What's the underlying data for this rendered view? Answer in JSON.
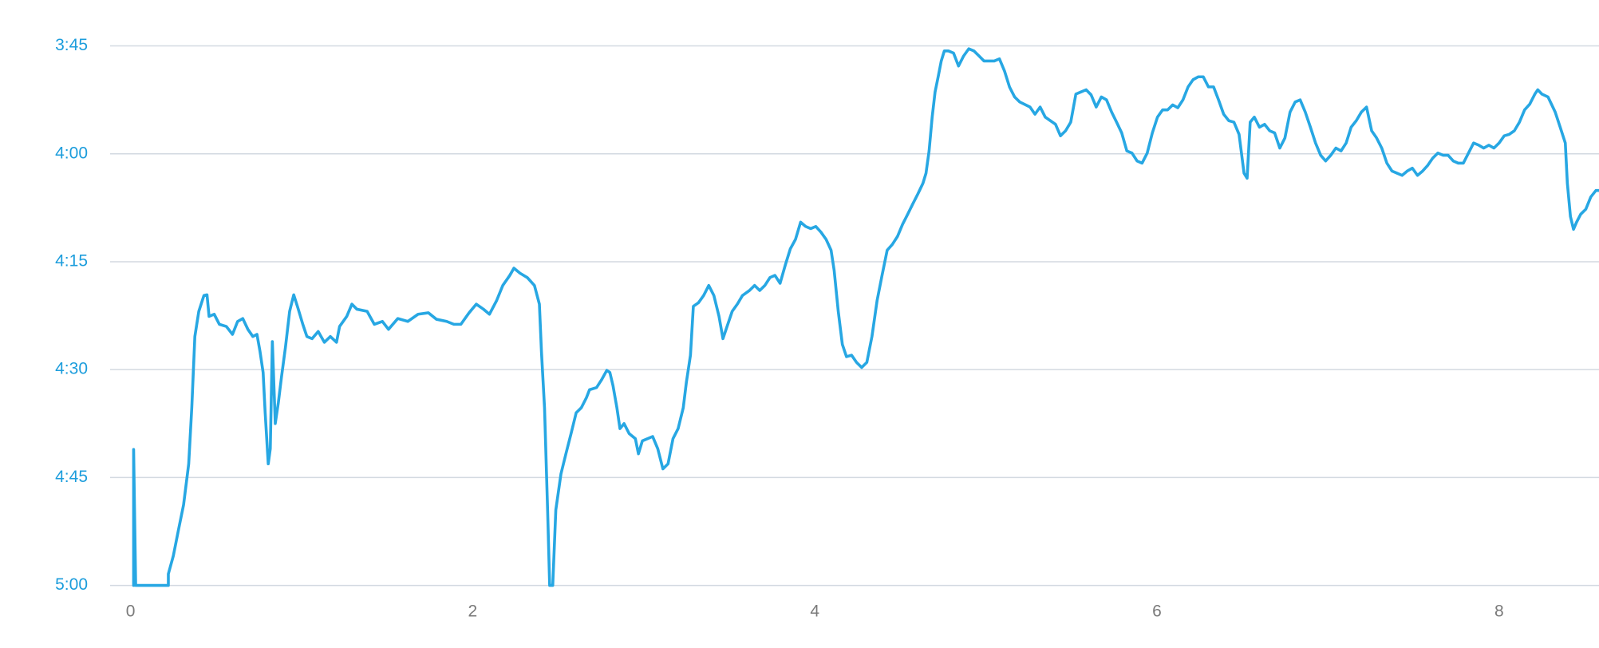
{
  "chart_data": {
    "type": "line",
    "color": "#27a7e3",
    "grid": true,
    "xlim": [
      0,
      8.584
    ],
    "ylim": [
      300,
      225
    ],
    "xticks": [
      0,
      2,
      4,
      6,
      8
    ],
    "yticks": [
      {
        "value": 225,
        "label": "3:45"
      },
      {
        "value": 240,
        "label": "4:00"
      },
      {
        "value": 255,
        "label": "4:15"
      },
      {
        "value": 270,
        "label": "4:30"
      },
      {
        "value": 285,
        "label": "4:45"
      },
      {
        "value": 300,
        "label": "5:00"
      }
    ],
    "x": [
      0.018,
      0.018,
      0.03,
      0.221,
      0.221,
      0.25,
      0.28,
      0.31,
      0.34,
      0.358,
      0.376,
      0.399,
      0.429,
      0.447,
      0.459,
      0.489,
      0.519,
      0.56,
      0.596,
      0.626,
      0.656,
      0.686,
      0.715,
      0.739,
      0.757,
      0.775,
      0.787,
      0.805,
      0.817,
      0.829,
      0.846,
      0.864,
      0.882,
      0.906,
      0.93,
      0.954,
      0.978,
      1.007,
      1.031,
      1.061,
      1.097,
      1.133,
      1.168,
      1.204,
      1.222,
      1.264,
      1.294,
      1.323,
      1.383,
      1.425,
      1.472,
      1.508,
      1.562,
      1.621,
      1.681,
      1.741,
      1.788,
      1.848,
      1.89,
      1.931,
      1.979,
      2.021,
      2.063,
      2.098,
      2.14,
      2.176,
      2.217,
      2.241,
      2.277,
      2.319,
      2.361,
      2.39,
      2.402,
      2.42,
      2.438,
      2.45,
      2.468,
      2.486,
      2.516,
      2.545,
      2.575,
      2.605,
      2.635,
      2.665,
      2.683,
      2.724,
      2.754,
      2.784,
      2.802,
      2.82,
      2.843,
      2.861,
      2.885,
      2.915,
      2.951,
      2.969,
      2.992,
      3.052,
      3.082,
      3.112,
      3.142,
      3.171,
      3.201,
      3.231,
      3.249,
      3.273,
      3.29,
      3.32,
      3.35,
      3.38,
      3.41,
      3.44,
      3.463,
      3.487,
      3.517,
      3.547,
      3.577,
      3.618,
      3.648,
      3.678,
      3.708,
      3.738,
      3.767,
      3.797,
      3.827,
      3.857,
      3.887,
      3.917,
      3.946,
      3.976,
      4.006,
      4.036,
      4.066,
      4.095,
      4.113,
      4.137,
      4.161,
      4.185,
      4.215,
      4.244,
      4.274,
      4.304,
      4.334,
      4.364,
      4.393,
      4.423,
      4.453,
      4.483,
      4.513,
      4.543,
      4.572,
      4.602,
      4.632,
      4.65,
      4.668,
      4.686,
      4.703,
      4.721,
      4.739,
      4.757,
      4.781,
      4.811,
      4.84,
      4.87,
      4.9,
      4.93,
      4.96,
      4.989,
      5.049,
      5.079,
      5.109,
      5.138,
      5.168,
      5.198,
      5.258,
      5.287,
      5.317,
      5.347,
      5.407,
      5.436,
      5.466,
      5.496,
      5.526,
      5.556,
      5.586,
      5.615,
      5.645,
      5.675,
      5.705,
      5.735,
      5.764,
      5.794,
      5.824,
      5.854,
      5.884,
      5.913,
      5.943,
      5.973,
      6.003,
      6.033,
      6.062,
      6.092,
      6.122,
      6.152,
      6.182,
      6.211,
      6.241,
      6.271,
      6.301,
      6.331,
      6.36,
      6.39,
      6.42,
      6.45,
      6.48,
      6.509,
      6.527,
      6.545,
      6.569,
      6.599,
      6.629,
      6.659,
      6.688,
      6.718,
      6.748,
      6.778,
      6.808,
      6.837,
      6.867,
      6.897,
      6.927,
      6.957,
      6.986,
      7.016,
      7.046,
      7.076,
      7.106,
      7.135,
      7.165,
      7.195,
      7.225,
      7.255,
      7.284,
      7.314,
      7.344,
      7.374,
      7.404,
      7.433,
      7.463,
      7.493,
      7.523,
      7.553,
      7.583,
      7.612,
      7.642,
      7.672,
      7.702,
      7.732,
      7.761,
      7.791,
      7.821,
      7.851,
      7.881,
      7.91,
      7.94,
      7.97,
      8.0,
      8.03,
      8.059,
      8.089,
      8.119,
      8.149,
      8.179,
      8.209,
      8.226,
      8.25,
      8.286,
      8.328,
      8.357,
      8.387,
      8.399,
      8.417,
      8.435,
      8.453,
      8.477,
      8.507,
      8.536,
      8.566,
      8.584
    ],
    "values": [
      300,
      281.1,
      300,
      300,
      298.4,
      295.9,
      292.3,
      288.8,
      283.1,
      275.3,
      265.4,
      261.9,
      259.7,
      259.6,
      262.6,
      262.3,
      263.7,
      264.0,
      265.1,
      263.3,
      262.9,
      264.4,
      265.4,
      265.1,
      267.5,
      270.4,
      276.0,
      283.1,
      281.0,
      266.1,
      277.5,
      274.6,
      271.1,
      266.8,
      261.9,
      259.6,
      261.4,
      263.7,
      265.4,
      265.7,
      264.7,
      266.2,
      265.4,
      266.2,
      264.0,
      262.6,
      260.9,
      261.6,
      261.9,
      263.7,
      263.3,
      264.4,
      262.9,
      263.3,
      262.3,
      262.1,
      263.0,
      263.3,
      263.7,
      263.7,
      262.1,
      260.9,
      261.6,
      262.3,
      260.4,
      258.3,
      256.9,
      255.9,
      256.6,
      257.2,
      258.3,
      260.9,
      267.5,
      275.3,
      289.5,
      300,
      300,
      289.5,
      284.5,
      281.7,
      278.9,
      276.0,
      275.3,
      273.9,
      272.8,
      272.5,
      271.4,
      270.1,
      270.4,
      272.2,
      275.3,
      278.2,
      277.5,
      278.9,
      279.6,
      281.7,
      279.9,
      279.3,
      281.0,
      283.8,
      283.1,
      279.6,
      278.2,
      275.3,
      271.8,
      268.0,
      261.2,
      260.7,
      259.7,
      258.3,
      259.7,
      262.6,
      265.7,
      264.0,
      261.9,
      260.9,
      259.7,
      259.0,
      258.3,
      259.0,
      258.3,
      257.2,
      256.9,
      258.0,
      255.5,
      253.2,
      251.9,
      249.5,
      250.1,
      250.4,
      250.1,
      250.9,
      251.9,
      253.4,
      256.2,
      261.9,
      266.5,
      268.2,
      268.0,
      269.0,
      269.7,
      269.0,
      265.4,
      260.4,
      256.9,
      253.4,
      252.6,
      251.5,
      249.8,
      248.4,
      247.0,
      245.6,
      244.1,
      242.7,
      239.6,
      234.9,
      231.4,
      229.3,
      227.1,
      225.7,
      225.7,
      226.0,
      227.8,
      226.4,
      225.4,
      225.7,
      226.4,
      227.1,
      227.1,
      226.8,
      228.5,
      230.7,
      232.1,
      232.8,
      233.5,
      234.5,
      233.5,
      234.9,
      235.9,
      237.5,
      236.8,
      235.6,
      231.7,
      231.4,
      231.1,
      231.8,
      233.5,
      232.1,
      232.5,
      234.2,
      235.6,
      237.1,
      239.6,
      239.9,
      241.0,
      241.3,
      239.9,
      237.1,
      234.9,
      233.9,
      233.9,
      233.2,
      233.6,
      232.5,
      230.7,
      229.7,
      229.3,
      229.3,
      230.7,
      230.7,
      232.5,
      234.5,
      235.4,
      235.6,
      237.3,
      242.7,
      243.4,
      235.6,
      234.9,
      236.3,
      235.9,
      236.8,
      237.1,
      239.2,
      237.8,
      234.2,
      232.8,
      232.5,
      234.2,
      236.3,
      238.5,
      240.2,
      241.0,
      240.2,
      239.2,
      239.6,
      238.5,
      236.3,
      235.4,
      234.2,
      233.5,
      236.8,
      237.8,
      239.2,
      241.3,
      242.4,
      242.7,
      243.0,
      242.4,
      242.0,
      243.0,
      242.4,
      241.6,
      240.6,
      239.9,
      240.2,
      240.2,
      241.0,
      241.3,
      241.3,
      239.9,
      238.5,
      238.8,
      239.2,
      238.8,
      239.2,
      238.5,
      237.5,
      237.3,
      236.8,
      235.6,
      233.9,
      233.1,
      231.7,
      231.1,
      231.7,
      232.1,
      234.2,
      236.3,
      238.5,
      244.1,
      248.7,
      250.5,
      249.5,
      248.4,
      247.7,
      246.0,
      245.1,
      245.1
    ]
  }
}
